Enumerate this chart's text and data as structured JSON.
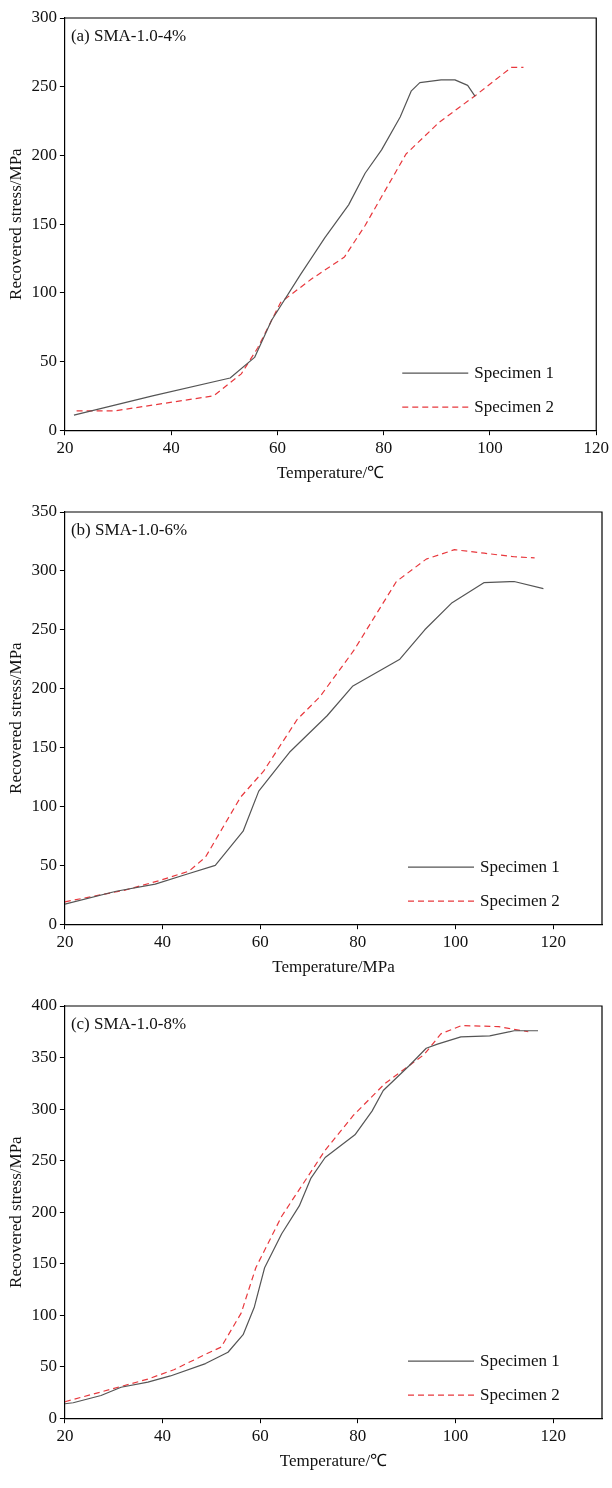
{
  "chart_data": [
    {
      "type": "line",
      "annotations": [
        "(a) SMA-1.0-4%"
      ],
      "xlabel": "Temperature/℃",
      "ylabel": "Recovered stress/MPa",
      "xlim": [
        20,
        120
      ],
      "xticks": [
        20,
        40,
        60,
        80,
        100,
        120
      ],
      "ylim": [
        0,
        300
      ],
      "yticks": [
        0,
        50,
        100,
        150,
        200,
        250,
        300
      ],
      "legend": "bottom right",
      "series": [
        {
          "name": "Specimen 1",
          "color": "#555555",
          "line_style": "solid",
          "x": [
            21.7,
            36.5,
            51.1,
            55.7,
            58.9,
            64.3,
            68.9,
            73.4,
            76.5,
            79.6,
            83.1,
            85.2,
            86.8,
            90.8,
            93.4,
            95.8,
            97.2
          ],
          "values": [
            11,
            25,
            38,
            53,
            80,
            113,
            140,
            164,
            187,
            204,
            228,
            247,
            253,
            255,
            255,
            251,
            243
          ]
        },
        {
          "name": "Specimen 2",
          "color": "#e8383d",
          "line_style": "dashed",
          "x": [
            22.2,
            29.2,
            48,
            53.2,
            56.3,
            60.6,
            66.4,
            72.6,
            76.5,
            84.2,
            90.4,
            97.4,
            104,
            106.3
          ],
          "values": [
            14,
            14,
            25,
            41,
            60,
            93,
            110,
            126,
            149,
            201,
            224,
            244,
            264,
            264
          ]
        }
      ]
    },
    {
      "type": "line",
      "annotations": [
        "(b) SMA-1.0-6%"
      ],
      "xlabel": "Temperature/MPa",
      "ylabel": "Recovered stress/MPa",
      "xlim": [
        20,
        130
      ],
      "xticks": [
        20,
        40,
        60,
        80,
        100,
        120
      ],
      "ylim": [
        0,
        350
      ],
      "yticks": [
        0,
        50,
        100,
        150,
        200,
        250,
        300,
        350
      ],
      "legend": "bottom right",
      "series": [
        {
          "name": "Specimen 1",
          "color": "#555555",
          "line_style": "solid",
          "x": [
            20,
            30.5,
            38.5,
            44.6,
            50.8,
            56.5,
            59.7,
            66,
            73.7,
            78.9,
            88.6,
            93.7,
            99.3,
            105.8,
            112,
            118
          ],
          "values": [
            17,
            28,
            34,
            42,
            50,
            79,
            113,
            146,
            177,
            202,
            225,
            250,
            273,
            290,
            291,
            285
          ]
        },
        {
          "name": "Specimen 2",
          "color": "#e8383d",
          "line_style": "dashed",
          "x": [
            20,
            32.4,
            39.3,
            45.4,
            48.8,
            56,
            60.7,
            67.6,
            72.2,
            79.1,
            87.9,
            94,
            99.8,
            105.9,
            112,
            116.2
          ],
          "values": [
            19,
            29,
            37,
            45,
            57,
            108,
            130,
            174,
            193,
            232,
            291,
            310,
            318,
            315,
            312,
            311
          ]
        }
      ]
    },
    {
      "type": "line",
      "annotations": [
        "(c) SMA-1.0-8%"
      ],
      "xlabel": "Temperature/℃",
      "ylabel": "Recovered stress/MPa",
      "xlim": [
        20,
        130
      ],
      "xticks": [
        20,
        40,
        60,
        80,
        100,
        120
      ],
      "ylim": [
        0,
        400
      ],
      "yticks": [
        0,
        50,
        100,
        150,
        200,
        250,
        300,
        350,
        400
      ],
      "legend": "bottom right",
      "series": [
        {
          "name": "Specimen 1",
          "color": "#555555",
          "line_style": "solid",
          "x": [
            20,
            21.7,
            27.4,
            31.5,
            37,
            41.6,
            48.8,
            53.4,
            56.5,
            58.8,
            60.9,
            64.4,
            68,
            70.4,
            73.3,
            79.4,
            82.9,
            85.2,
            90.5,
            94,
            96.3,
            101.1,
            107,
            112,
            116.9
          ],
          "values": [
            14,
            15,
            22,
            30,
            35,
            41,
            53,
            64,
            81,
            108,
            146,
            179,
            206,
            233,
            253,
            275,
            298,
            318,
            342,
            359,
            363,
            370,
            371,
            376,
            376
          ]
        },
        {
          "name": "Specimen 2",
          "color": "#e8383d",
          "line_style": "dashed",
          "x": [
            20,
            27.8,
            37,
            42.3,
            48.8,
            52,
            56.1,
            59.1,
            64.4,
            73.3,
            79.1,
            85.6,
            93.6,
            97,
            101.2,
            108.8,
            114.9
          ],
          "values": [
            16,
            26,
            38,
            47,
            62,
            69,
            102,
            146,
            196,
            260,
            294,
            325,
            353,
            373,
            381,
            380,
            375
          ]
        }
      ]
    }
  ]
}
